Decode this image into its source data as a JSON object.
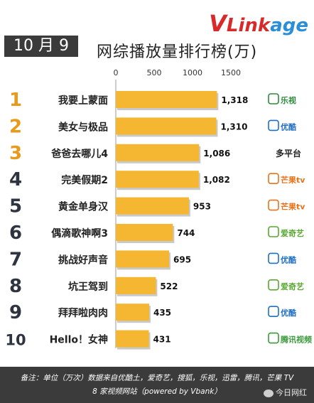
{
  "header": {
    "date_badge": "10 月 9 日",
    "brand_v": "V",
    "brand_link": "Link",
    "brand_age": "age",
    "title": "网综播放量排行榜(万)"
  },
  "chart_data": {
    "type": "bar",
    "orientation": "horizontal",
    "title": "网综播放量排行榜(万)",
    "xlim": [
      0,
      1500
    ],
    "xticks": [
      0,
      500,
      1000,
      1500
    ],
    "xtick_labels": [
      "0",
      "500",
      "1000",
      "1500"
    ],
    "bar_color": "#f5b731",
    "ranks": [
      "1",
      "2",
      "3",
      "4",
      "5",
      "6",
      "7",
      "8",
      "9",
      "10"
    ],
    "categories": [
      "我要上蒙面",
      "美女与极品",
      "爸爸去哪儿4",
      "完美假期2",
      "黄金单身汉",
      "偶滴歌神啊3",
      "挑战好声音",
      "坑王驾到",
      "拜拜啦肉肉",
      "Hello！女神"
    ],
    "values": [
      1318,
      1310,
      1086,
      1082,
      953,
      744,
      695,
      522,
      435,
      431
    ],
    "value_labels": [
      "1,318",
      "1,310",
      "1,086",
      "1,082",
      "953",
      "744",
      "695",
      "522",
      "435",
      "431"
    ],
    "platforms": [
      {
        "name": "乐视",
        "icon": "letv-logo-icon",
        "color": "#2d8a3e"
      },
      {
        "name": "优酷",
        "icon": "youku-logo-icon",
        "color": "#1f6fc4"
      },
      {
        "name": "多平台",
        "icon": "",
        "color": "#222222"
      },
      {
        "name": "芒果tv",
        "icon": "mango-tv-logo-icon",
        "color": "#e8731a"
      },
      {
        "name": "芒果tv",
        "icon": "mango-tv-logo-icon",
        "color": "#e8731a"
      },
      {
        "name": "爱奇艺",
        "icon": "iqiyi-logo-icon",
        "color": "#5aa832"
      },
      {
        "name": "优酷",
        "icon": "youku-logo-icon",
        "color": "#1f6fc4"
      },
      {
        "name": "爱奇艺",
        "icon": "iqiyi-logo-icon",
        "color": "#5aa832"
      },
      {
        "name": "优酷",
        "icon": "youku-logo-icon",
        "color": "#1f6fc4"
      },
      {
        "name": "腾讯视频",
        "icon": "tencent-video-logo-icon",
        "color": "#3a9a3a"
      }
    ]
  },
  "footer": {
    "line1": "备注：单位（万次）数据来自优酷土，爱奇艺，搜狐，乐视，迅雷，腾讯，芒果 TV",
    "line2": "8 家视频网站（powered by Vbank）",
    "watermark": "今日网红"
  }
}
